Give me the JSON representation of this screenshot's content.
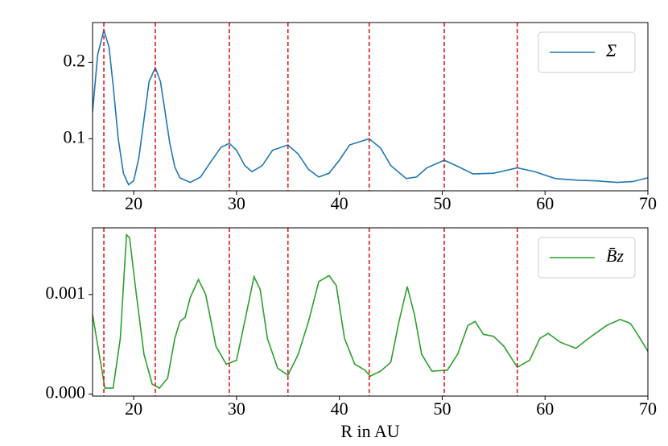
{
  "chart_data": [
    {
      "type": "line",
      "x": [
        16,
        16.5,
        17.1,
        17.6,
        18,
        18.5,
        19,
        19.5,
        20,
        20.5,
        21,
        21.5,
        22.1,
        22.6,
        23,
        23.5,
        24,
        24.5,
        25.5,
        26.5,
        27.5,
        28.5,
        29.3,
        30,
        30.8,
        31.5,
        32.5,
        33.5,
        35,
        36,
        37,
        38,
        39,
        40,
        41,
        42.9,
        44,
        45,
        46.5,
        47.5,
        48.5,
        50.2,
        51.5,
        53,
        55,
        57.3,
        59,
        61,
        63,
        65,
        67,
        68.5,
        70
      ],
      "series": [
        {
          "name": "Σ",
          "color": "#1f77b4",
          "values": [
            0.135,
            0.21,
            0.242,
            0.22,
            0.17,
            0.1,
            0.055,
            0.04,
            0.045,
            0.075,
            0.125,
            0.175,
            0.193,
            0.175,
            0.14,
            0.095,
            0.063,
            0.049,
            0.043,
            0.05,
            0.07,
            0.089,
            0.094,
            0.085,
            0.065,
            0.057,
            0.065,
            0.085,
            0.092,
            0.08,
            0.06,
            0.05,
            0.055,
            0.072,
            0.092,
            0.1,
            0.088,
            0.065,
            0.048,
            0.05,
            0.062,
            0.072,
            0.064,
            0.054,
            0.055,
            0.062,
            0.057,
            0.048,
            0.046,
            0.045,
            0.043,
            0.044,
            0.049
          ]
        }
      ],
      "xlim": [
        16,
        70
      ],
      "xticks": [
        20,
        30,
        40,
        50,
        60,
        70
      ],
      "ylim": [
        0.032,
        0.252
      ],
      "yticks": [
        0.1,
        0.2
      ],
      "vlines": [
        17.1,
        22.1,
        29.3,
        35.0,
        42.9,
        50.2,
        57.3
      ],
      "vline_color": "#e41a1c",
      "legend": "upper right"
    },
    {
      "type": "line",
      "x": [
        16,
        17.2,
        18,
        18.7,
        19.3,
        19.6,
        20.2,
        21,
        21.8,
        22.5,
        23.3,
        24,
        24.5,
        25,
        25.5,
        26.3,
        27,
        28,
        29,
        30,
        30.8,
        31.7,
        32.3,
        33,
        34,
        35,
        36,
        37,
        38,
        39,
        39.7,
        40.5,
        41.5,
        42.5,
        43,
        44,
        45,
        45.8,
        46.6,
        47.3,
        48,
        49,
        50.5,
        51.5,
        52.5,
        53.2,
        54,
        55,
        56,
        57.3,
        58.5,
        59.5,
        60.3,
        61.5,
        63,
        64.5,
        66,
        67.3,
        68.3,
        69,
        70
      ],
      "series": [
        {
          "name": "B̄z",
          "color": "#2ca02c",
          "values": [
            0.0008,
            6e-05,
            6e-05,
            0.00056,
            0.0016,
            0.00157,
            0.00105,
            0.0004,
            0.0001,
            6e-05,
            0.00016,
            0.00056,
            0.00073,
            0.00077,
            0.00097,
            0.00115,
            0.001,
            0.00048,
            0.0003,
            0.00034,
            0.00073,
            0.00118,
            0.00105,
            0.00056,
            0.00026,
            0.00019,
            0.0004,
            0.00073,
            0.00113,
            0.00119,
            0.00109,
            0.00056,
            0.0003,
            0.00024,
            0.00018,
            0.00023,
            0.00032,
            0.00073,
            0.00108,
            0.0008,
            0.0004,
            0.00023,
            0.00024,
            0.0004,
            0.00069,
            0.00073,
            0.0006,
            0.00058,
            0.00048,
            0.00027,
            0.00034,
            0.00056,
            0.00061,
            0.00052,
            0.00046,
            0.00058,
            0.00069,
            0.00075,
            0.00071,
            0.0006,
            0.00043
          ]
        }
      ],
      "xlim": [
        16,
        70
      ],
      "xticks": [
        20,
        30,
        40,
        50,
        60,
        70
      ],
      "ylim": [
        -2e-05,
        0.00167
      ],
      "yticks": [
        {
          "value": 0,
          "label": "0.000"
        },
        0.001
      ],
      "vlines": [
        17.1,
        22.1,
        29.3,
        35.0,
        42.9,
        50.2,
        57.3
      ],
      "vline_color": "#e41a1c",
      "legend": "upper right",
      "xlabel": "R in AU"
    }
  ]
}
